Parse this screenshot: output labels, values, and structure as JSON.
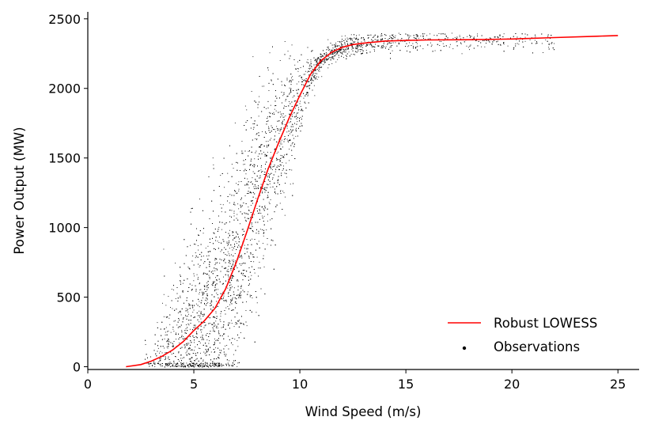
{
  "chart_data": {
    "type": "scatter",
    "xlabel": "Wind Speed (m/s)",
    "ylabel": "Power Output (MW)",
    "xlim": [
      0,
      26
    ],
    "ylim": [
      -20,
      2550
    ],
    "xticks": [
      0,
      5,
      10,
      15,
      20,
      25
    ],
    "yticks": [
      0,
      500,
      1000,
      1500,
      2000,
      2500
    ],
    "grid": false,
    "legend_position": "lower-right",
    "series": [
      {
        "name": "Robust LOWESS",
        "kind": "line",
        "color": "#ff0000",
        "x": [
          1.8,
          2.5,
          3.0,
          3.5,
          4.0,
          4.5,
          5.0,
          5.5,
          6.0,
          6.5,
          7.0,
          7.5,
          8.0,
          8.5,
          9.0,
          9.5,
          10.0,
          10.5,
          11.0,
          11.5,
          12.0,
          12.5,
          13.0,
          14.0,
          15.0,
          16.0,
          18.0,
          20.0,
          22.0,
          24.0,
          25.0
        ],
        "y": [
          0,
          15,
          40,
          75,
          120,
          180,
          260,
          330,
          420,
          560,
          750,
          970,
          1200,
          1420,
          1610,
          1790,
          1950,
          2100,
          2200,
          2260,
          2295,
          2315,
          2325,
          2340,
          2345,
          2348,
          2350,
          2355,
          2365,
          2375,
          2380
        ]
      },
      {
        "name": "Observations",
        "kind": "scatter",
        "color": "#000000",
        "description_note": "",
        "sample_count": 6000
      }
    ]
  }
}
